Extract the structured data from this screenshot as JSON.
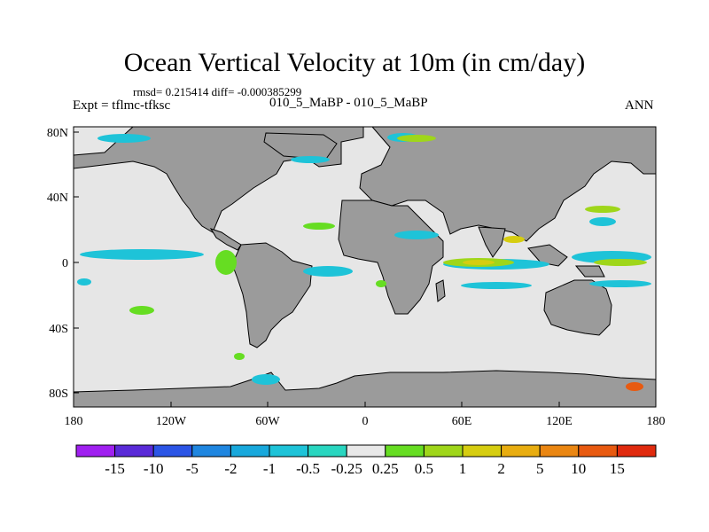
{
  "title": "Ocean Vertical Velocity at 10m (in cm/day)",
  "stats": "rmsd= 0.215414 diff= -0.000385299",
  "expt": "Expt = tflmc-tfksc",
  "case": "010_5_MaBP - 010_5_MaBP",
  "season": "ANN",
  "map": {
    "x_ticks": [
      "180",
      "120W",
      "60W",
      "0",
      "60E",
      "120E",
      "180"
    ],
    "y_ticks": [
      "80N",
      "40N",
      "0",
      "40S",
      "80S"
    ],
    "land_color": "#9b9b9b",
    "ocean_color": "#e6e6e6"
  },
  "colorbar": {
    "labels": [
      "-15",
      "-10",
      "-5",
      "-2",
      "-1",
      "-0.5",
      "-0.25",
      "0.25",
      "0.5",
      "1",
      "2",
      "5",
      "10",
      "15"
    ],
    "colors": [
      "#a020f0",
      "#5a2ad8",
      "#2b55e6",
      "#1f86e0",
      "#18a8dc",
      "#1ec3d8",
      "#29d6c0",
      "#e8e8e8",
      "#66dd22",
      "#9fd61a",
      "#d6cd10",
      "#e8ad10",
      "#ea8612",
      "#e85a10",
      "#e02a0e"
    ]
  }
}
